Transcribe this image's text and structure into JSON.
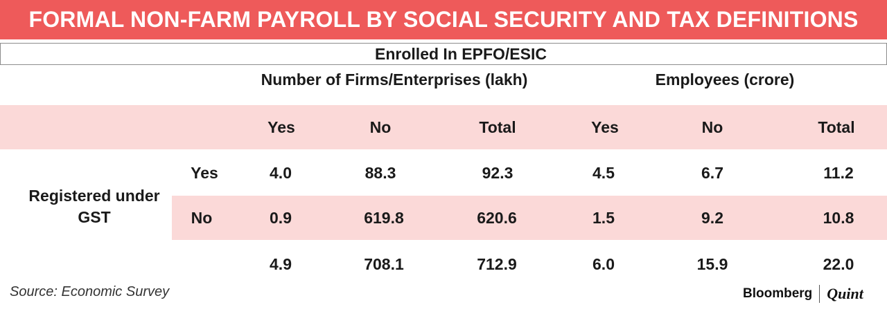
{
  "title": "FORMAL NON-FARM PAYROLL BY SOCIAL SECURITY AND TAX DEFINITIONS",
  "header": {
    "group_label": "Enrolled In EPFO/ESIC",
    "firms_label": "Number of  Firms/Enterprises (lakh)",
    "employees_label": "Employees (crore)"
  },
  "row_group_label": "Registered under GST",
  "footer": {
    "source": "Source: Economic Survey",
    "brand_left": "Bloomberg",
    "brand_right": "Quint"
  },
  "colors": {
    "title_bg": "#ee5a5a",
    "band": "#fbd9d8",
    "text": "#1a1a1a"
  },
  "chart_data": {
    "type": "table",
    "title": "FORMAL NON-FARM PAYROLL BY SOCIAL SECURITY AND TAX DEFINITIONS",
    "column_group": "Enrolled In EPFO/ESIC",
    "column_subgroups": [
      {
        "name": "Number of  Firms/Enterprises (lakh)",
        "columns": [
          "Yes",
          "No",
          "Total"
        ]
      },
      {
        "name": "Employees (crore)",
        "columns": [
          "Yes",
          "No",
          "Total"
        ]
      }
    ],
    "columns": [
      "Yes",
      "No",
      "Total",
      "Yes",
      "No",
      "Total"
    ],
    "row_group": "Registered under GST",
    "rows": [
      {
        "label": "Yes",
        "values": [
          "4.0",
          "88.3",
          "92.3",
          "4.5",
          "6.7",
          "11.2"
        ]
      },
      {
        "label": "No",
        "values": [
          "0.9",
          "619.8",
          "620.6",
          "1.5",
          "9.2",
          "10.8"
        ]
      },
      {
        "label": "",
        "values": [
          "4.9",
          "708.1",
          "712.9",
          "6.0",
          "15.9",
          "22.0"
        ]
      }
    ],
    "source": "Source: Economic Survey"
  }
}
